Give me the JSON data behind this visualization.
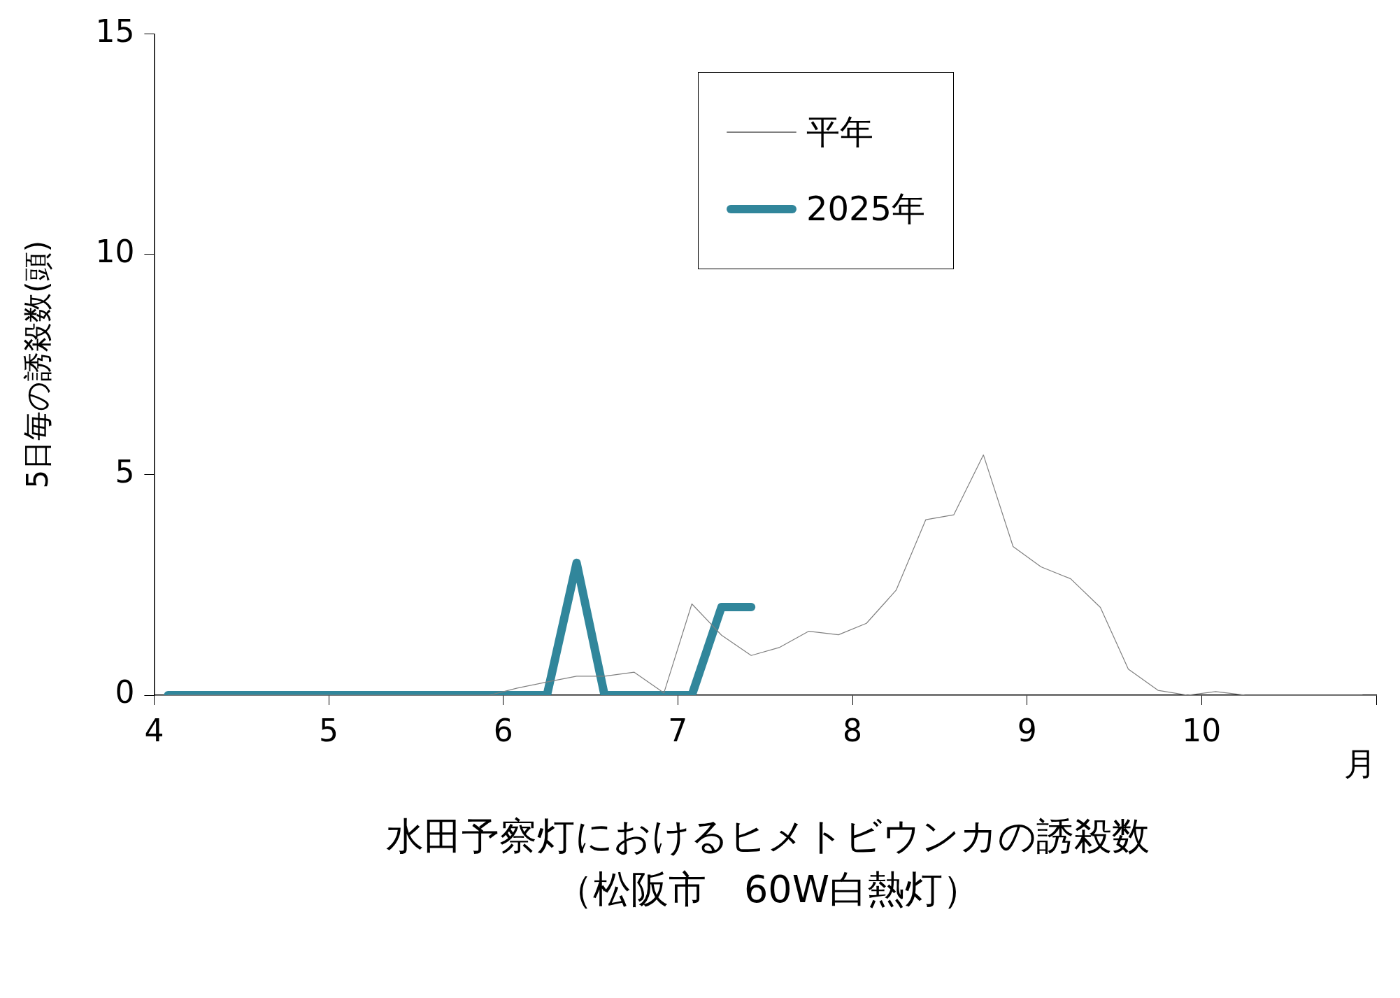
{
  "chart_data": {
    "type": "line",
    "title": "水田予察灯におけるヒメトビウンカの誘殺数",
    "subtitle": "（松阪市　60W白熱灯）",
    "xlabel": "月",
    "ylabel": "5日毎の誘殺数(頭)",
    "x": [
      4.08,
      4.25,
      4.42,
      4.58,
      4.75,
      4.92,
      5.08,
      5.25,
      5.42,
      5.58,
      5.75,
      5.92,
      6.08,
      6.25,
      6.42,
      6.58,
      6.75,
      6.92,
      7.08,
      7.25,
      7.42,
      7.58,
      7.75,
      7.92,
      8.08,
      8.25,
      8.42,
      8.58,
      8.75,
      8.92,
      9.08,
      9.25,
      9.42,
      9.58,
      9.75,
      9.92,
      10.08,
      10.25,
      10.42,
      10.58,
      10.75,
      10.92
    ],
    "series": [
      {
        "name": "平年",
        "color": "#808080",
        "values": [
          0,
          0,
          0,
          0,
          0,
          0,
          0,
          0,
          0,
          0,
          0,
          0,
          0.16,
          0.3,
          0.43,
          0.43,
          0.52,
          0.05,
          2.07,
          1.36,
          0.9,
          1.08,
          1.45,
          1.37,
          1.63,
          2.38,
          3.98,
          4.09,
          5.45,
          3.37,
          2.91,
          2.64,
          1.99,
          0.59,
          0.11,
          0,
          0.08,
          0,
          0,
          0,
          0,
          0
        ]
      },
      {
        "name": "2025年",
        "color": "#31869b",
        "values": [
          0,
          0,
          0,
          0,
          0,
          0,
          0,
          0,
          0,
          0,
          0,
          0,
          0,
          0,
          3,
          0,
          0,
          0,
          0,
          2,
          2,
          null,
          null,
          null,
          null,
          null,
          null,
          null,
          null,
          null,
          null,
          null,
          null,
          null,
          null,
          null,
          null,
          null,
          null,
          null,
          null,
          null
        ]
      }
    ],
    "xlim": [
      4,
      11
    ],
    "xticks": [
      4,
      5,
      6,
      7,
      8,
      9,
      10,
      {
        "value": 11,
        "label": null
      }
    ],
    "ylim": [
      0,
      15
    ],
    "yticks": [
      0,
      5,
      10,
      15
    ],
    "grid": false,
    "legend": "top",
    "marker": "none",
    "line_style": "solid"
  }
}
